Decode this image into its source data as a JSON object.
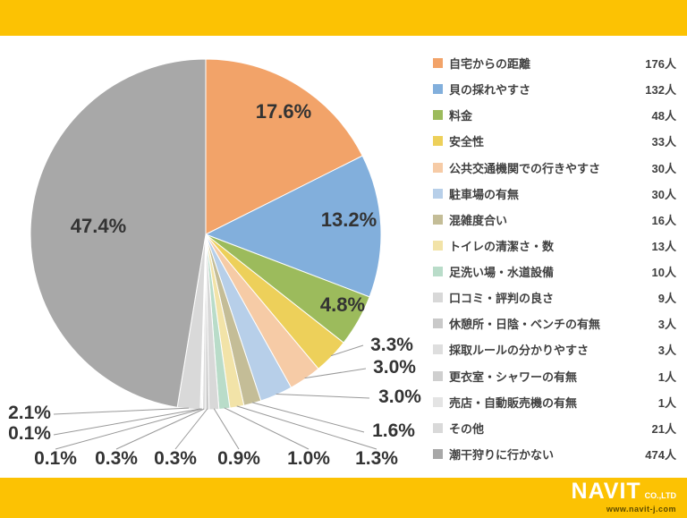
{
  "theme": {
    "band_color": "#FCC203",
    "text_color": "#404040",
    "percent_label_color": "#333333"
  },
  "chart_data": {
    "type": "pie",
    "title": "",
    "unit": "人",
    "total": 1000,
    "start_angle": 0,
    "direction": "clockwise",
    "legend_position": "right",
    "categories": [
      "自宅からの距離",
      "貝の採れやすさ",
      "料金",
      "安全性",
      "公共交通機関での行きやすさ",
      "駐車場の有無",
      "混雑度合い",
      "トイレの清潔さ・数",
      "足洗い場・水道設備",
      "口コミ・評判の良さ",
      "休憩所・日陰・ベンチの有無",
      "採取ルールの分かりやすさ",
      "更衣室・シャワーの有無",
      "売店・自動販売機の有無",
      "その他",
      "潮干狩りに行かない"
    ],
    "values": [
      176,
      132,
      48,
      33,
      30,
      30,
      16,
      13,
      10,
      9,
      3,
      3,
      1,
      1,
      21,
      474
    ],
    "percent_labels": [
      "17.6%",
      "13.2%",
      "4.8%",
      "3.3%",
      "3.0%",
      "3.0%",
      "1.6%",
      "1.3%",
      "1.0%",
      "0.9%",
      "0.3%",
      "0.3%",
      "0.1%",
      "0.1%",
      "2.1%",
      "47.4%"
    ],
    "count_labels": [
      "176人",
      "132人",
      "48人",
      "33人",
      "30人",
      "30人",
      "16人",
      "13人",
      "10人",
      "9人",
      "3人",
      "3人",
      "1人",
      "1人",
      "21人",
      "474人"
    ],
    "colors": [
      "#F2A369",
      "#82AFDC",
      "#9CBB5C",
      "#EDD05A",
      "#F6CBA6",
      "#B7CFE9",
      "#C4BD97",
      "#F2E3A8",
      "#B9DCC9",
      "#D8D8D8",
      "#C9C9C9",
      "#DEDEDE",
      "#CFCFCF",
      "#E4E4E4",
      "#D9D9D9",
      "#A8A8A8"
    ]
  },
  "footer": {
    "brand": "NAVIT",
    "brand_sub": "CO.,LTD",
    "url": "www.navit-j.com"
  }
}
